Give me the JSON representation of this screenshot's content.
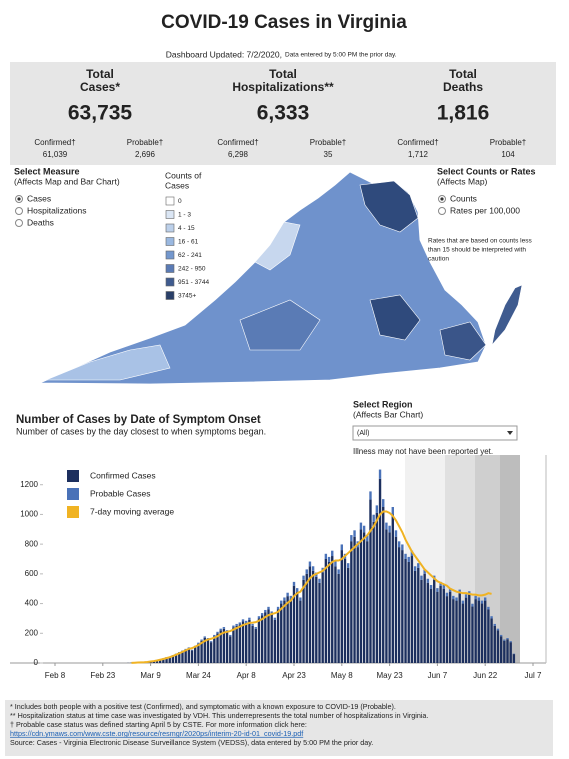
{
  "header": {
    "title": "COVID-19 Cases in Virginia",
    "updated": "Dashboard Updated: 7/2/2020,",
    "updated_note": "Data entered by 5:00 PM the prior day."
  },
  "stats": [
    {
      "label": [
        "Total",
        "Cases*"
      ],
      "value": "63,735",
      "confirmed_label": "Confirmed†",
      "confirmed": "61,039",
      "probable_label": "Probable†",
      "probable": "2,696"
    },
    {
      "label": [
        "Total",
        "Hospitalizations**"
      ],
      "value": "6,333",
      "confirmed_label": "Confirmed†",
      "confirmed": "6,298",
      "probable_label": "Probable†",
      "probable": "35"
    },
    {
      "label": [
        "Total",
        "Deaths"
      ],
      "value": "1,816",
      "confirmed_label": "Confirmed†",
      "confirmed": "1,712",
      "probable_label": "Probable†",
      "probable": "104"
    }
  ],
  "measure_control": {
    "title": "Select Measure",
    "subtitle": "(Affects Map and Bar Chart)",
    "options": [
      "Cases",
      "Hospitalizations",
      "Deaths"
    ],
    "selected": 0
  },
  "map_legend": {
    "title": [
      "Counts of",
      "Cases"
    ],
    "bins": [
      "0",
      "1 - 3",
      "4 - 15",
      "16 - 61",
      "62 - 241",
      "242 - 950",
      "951 - 3744",
      "3745+"
    ],
    "colors": [
      "#ffffff",
      "#dbe6f4",
      "#bcd0ea",
      "#9ab8e0",
      "#7397cd",
      "#5a7bb5",
      "#3f5b8f",
      "#2a3f68"
    ]
  },
  "rate_control": {
    "title": "Select Counts or Rates",
    "subtitle": "(Affects Map)",
    "options": [
      "Counts",
      "Rates per 100,000"
    ],
    "selected": 0
  },
  "rate_note": [
    "Rates that are based on counts less",
    "than 15 should be interpreted with",
    "caution"
  ],
  "region_control": {
    "title": "Select Region",
    "subtitle": "(Affects Bar Chart)",
    "value": "(All)"
  },
  "chart_data": {
    "type": "bar",
    "title": "Number of Cases by Date of Symptom Onset",
    "subtitle": "Number of cases by the day closest to when symptoms began.",
    "annotation": "Illness may not have been reported yet.",
    "stacked": true,
    "categories": [
      "Feb 8",
      null,
      null,
      null,
      null,
      null,
      null,
      null,
      null,
      null,
      null,
      null,
      null,
      null,
      null,
      "Feb 23",
      null,
      null,
      null,
      null,
      null,
      null,
      null,
      null,
      null,
      null,
      null,
      null,
      null,
      null,
      "Mar 9",
      null,
      null,
      null,
      null,
      null,
      null,
      null,
      null,
      null,
      null,
      null,
      null,
      null,
      null,
      "Mar 24",
      null,
      null,
      null,
      null,
      null,
      null,
      null,
      null,
      null,
      null,
      null,
      null,
      null,
      null,
      "Apr 8",
      null,
      null,
      null,
      null,
      null,
      null,
      null,
      null,
      null,
      null,
      null,
      null,
      null,
      null,
      "Apr 23",
      null,
      null,
      null,
      null,
      null,
      null,
      null,
      null,
      null,
      null,
      null,
      null,
      null,
      null,
      "May 8",
      null,
      null,
      null,
      null,
      null,
      null,
      null,
      null,
      null,
      null,
      null,
      null,
      null,
      null,
      "May 23",
      null,
      null,
      null,
      null,
      null,
      null,
      null,
      null,
      null,
      null,
      null,
      null,
      null,
      null,
      "Jun 7",
      null,
      null,
      null,
      null,
      null,
      null,
      null,
      null,
      null,
      null,
      null,
      null,
      null,
      null,
      "Jun 22",
      null,
      null,
      null,
      null,
      null,
      null,
      null,
      null,
      null,
      null,
      null,
      null,
      null,
      null,
      "Jul 7"
    ],
    "series": [
      {
        "name": "Confirmed Cases",
        "type": "bar",
        "color": "#1c2f5e",
        "values": [
          0,
          0,
          0,
          0,
          0,
          0,
          0,
          0,
          0,
          0,
          0,
          0,
          0,
          0,
          0,
          0,
          0,
          0,
          0,
          0,
          0,
          0,
          0,
          1,
          2,
          1,
          3,
          5,
          4,
          8,
          10,
          14,
          20,
          25,
          30,
          38,
          35,
          50,
          60,
          70,
          80,
          90,
          100,
          85,
          110,
          130,
          150,
          170,
          160,
          140,
          180,
          200,
          220,
          230,
          210,
          180,
          240,
          250,
          260,
          280,
          270,
          290,
          250,
          230,
          300,
          320,
          340,
          360,
          330,
          290,
          360,
          400,
          420,
          450,
          430,
          520,
          480,
          420,
          560,
          600,
          650,
          620,
          580,
          540,
          610,
          700,
          680,
          720,
          650,
          600,
          760,
          700,
          640,
          820,
          850,
          780,
          900,
          880,
          820,
          1100,
          950,
          1010,
          1240,
          1050,
          900,
          880,
          1000,
          850,
          780,
          760,
          700,
          680,
          720,
          620,
          640,
          560,
          600,
          540,
          500,
          560,
          480,
          520,
          500,
          450,
          480,
          430,
          420,
          470,
          400,
          440,
          460,
          380,
          430,
          420,
          400,
          420,
          360,
          300,
          250,
          220,
          180,
          150,
          160,
          140,
          60,
          0,
          0,
          0,
          0,
          0,
          0
        ]
      },
      {
        "name": "Probable Cases",
        "type": "bar",
        "color": "#4a72b8",
        "values": [
          0,
          0,
          0,
          0,
          0,
          0,
          0,
          0,
          0,
          0,
          0,
          0,
          0,
          0,
          0,
          0,
          0,
          0,
          0,
          0,
          0,
          0,
          0,
          0,
          0,
          0,
          0,
          0,
          0,
          0,
          0,
          0,
          1,
          1,
          2,
          2,
          2,
          3,
          3,
          4,
          4,
          5,
          5,
          4,
          6,
          7,
          8,
          9,
          8,
          7,
          9,
          10,
          11,
          12,
          11,
          9,
          12,
          13,
          13,
          14,
          14,
          15,
          13,
          12,
          15,
          16,
          17,
          18,
          17,
          15,
          18,
          20,
          21,
          23,
          22,
          26,
          24,
          21,
          28,
          30,
          33,
          31,
          29,
          27,
          31,
          35,
          34,
          36,
          33,
          30,
          38,
          35,
          32,
          41,
          43,
          39,
          45,
          44,
          41,
          55,
          48,
          51,
          62,
          53,
          45,
          44,
          50,
          43,
          39,
          38,
          35,
          34,
          36,
          31,
          32,
          28,
          30,
          27,
          25,
          28,
          24,
          26,
          25,
          23,
          24,
          22,
          21,
          24,
          20,
          22,
          23,
          19,
          22,
          21,
          20,
          21,
          18,
          15,
          13,
          11,
          9,
          8,
          8,
          7,
          3,
          0,
          0,
          0,
          0,
          0,
          0
        ]
      },
      {
        "name": "7-day moving average",
        "type": "line",
        "color": "#f0b323",
        "values": [
          null,
          null,
          null,
          null,
          null,
          null,
          null,
          null,
          null,
          null,
          null,
          null,
          null,
          null,
          null,
          null,
          null,
          null,
          null,
          null,
          null,
          null,
          null,
          null,
          1,
          2,
          3,
          4,
          5,
          7,
          10,
          13,
          17,
          22,
          27,
          33,
          39,
          47,
          56,
          65,
          75,
          85,
          95,
          100,
          110,
          120,
          135,
          148,
          158,
          163,
          170,
          180,
          195,
          205,
          210,
          215,
          225,
          235,
          245,
          255,
          262,
          270,
          272,
          275,
          285,
          295,
          310,
          322,
          330,
          335,
          345,
          365,
          385,
          405,
          420,
          450,
          470,
          480,
          510,
          540,
          570,
          590,
          600,
          610,
          620,
          640,
          660,
          680,
          690,
          690,
          700,
          720,
          740,
          760,
          780,
          800,
          820,
          840,
          860,
          890,
          920,
          960,
          1000,
          1020,
          1020,
          1010,
          990,
          960,
          920,
          880,
          830,
          790,
          750,
          720,
          690,
          660,
          630,
          610,
          590,
          570,
          550,
          540,
          530,
          520,
          500,
          490,
          480,
          475,
          470,
          470,
          465,
          460,
          460,
          455,
          455,
          460,
          470,
          465,
          null,
          null,
          null,
          null,
          null,
          null,
          null,
          null,
          null,
          null,
          null,
          null,
          null
        ]
      }
    ],
    "ylim": [
      0,
      1400
    ],
    "yticks": [
      0,
      200,
      400,
      600,
      800,
      1000,
      1200
    ],
    "grid": false
  },
  "footer": {
    "notes": [
      "* Includes both people with a positive test (Confirmed), and symptomatic with a known exposure to COVID-19 (Probable).",
      "** Hospitalization status at time case was investigated by VDH. This underrepresents the total number of hospitalizations in Virginia.",
      "† Probable case status was defined starting April 5 by CSTE. For more information click here:"
    ],
    "link": "https://cdn.ymaws.com/www.cste.org/resource/resmgr/2020ps/interim-20-id-01_covid-19.pdf",
    "source": "Source:  Cases - Virginia Electronic Disease Surveillance System (VEDSS), data entered by 5:00 PM the prior day."
  }
}
